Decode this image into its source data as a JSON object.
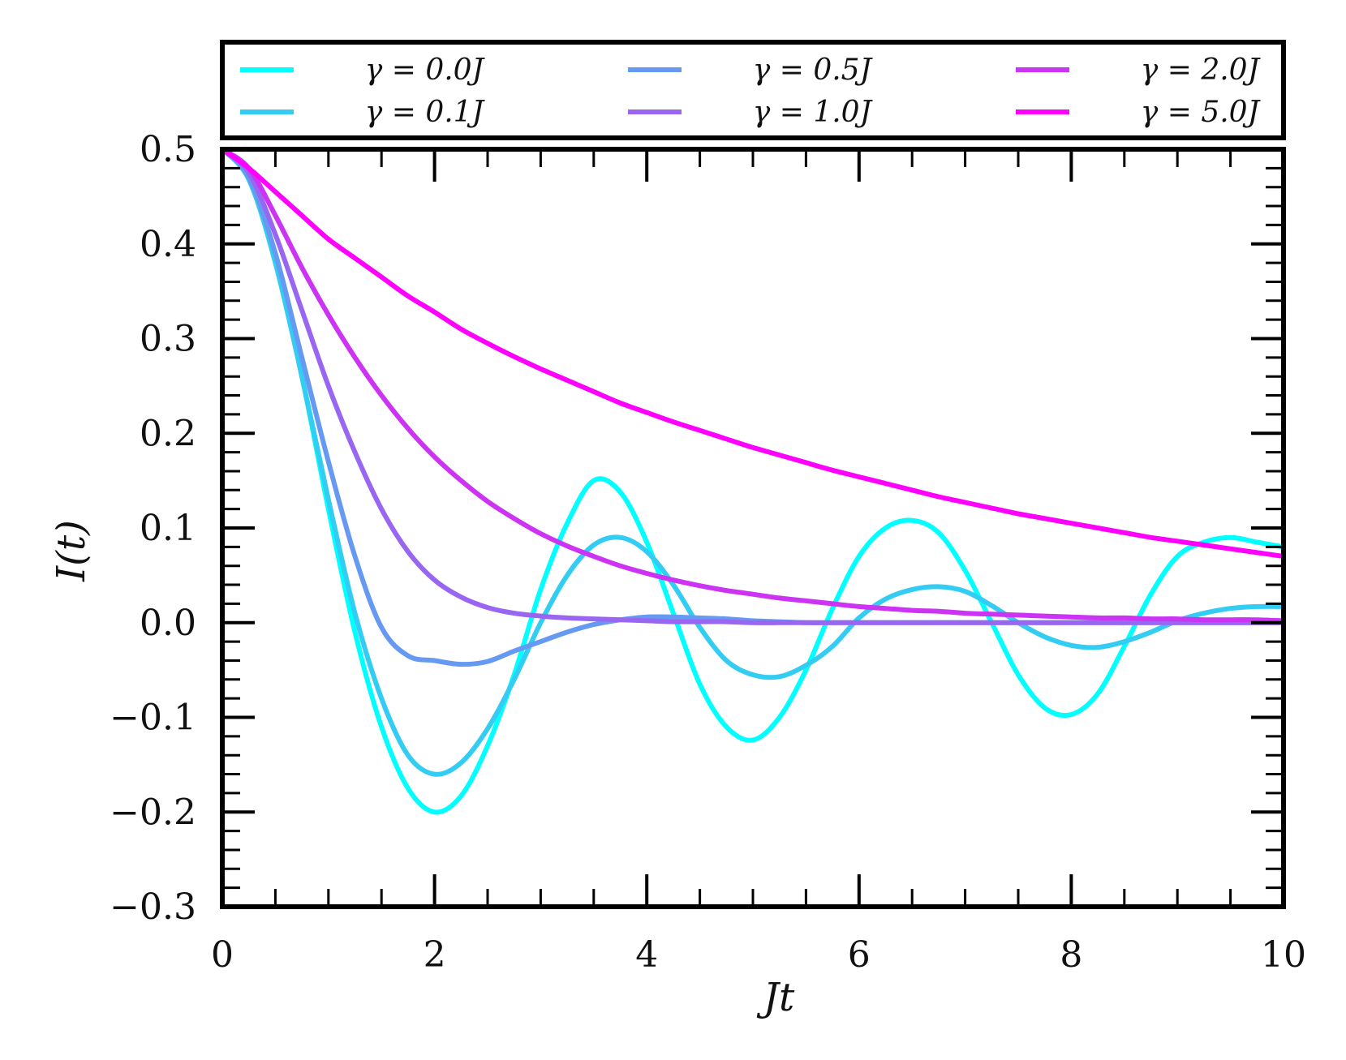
{
  "chart_data": {
    "type": "line",
    "title": "",
    "xlabel": "Jt",
    "ylabel": "I(t)",
    "xlim": [
      0,
      10
    ],
    "ylim": [
      -0.3,
      0.5
    ],
    "x_ticks": [
      0,
      2,
      4,
      6,
      8,
      10
    ],
    "x_tick_labels": [
      "0",
      "2",
      "4",
      "6",
      "8",
      "10"
    ],
    "y_ticks": [
      -0.3,
      -0.2,
      -0.1,
      0.0,
      0.1,
      0.2,
      0.3,
      0.4,
      0.5
    ],
    "y_tick_labels": [
      "−0.3",
      "−0.2",
      "−0.1",
      "0.0",
      "0.1",
      "0.2",
      "0.3",
      "0.4",
      "0.5"
    ],
    "grid": false,
    "legend_position": "top, outside plot, 3 columns",
    "x": [
      0,
      0.25,
      0.5,
      0.75,
      1.0,
      1.25,
      1.5,
      1.75,
      2.0,
      2.25,
      2.5,
      2.75,
      3.0,
      3.25,
      3.5,
      3.75,
      4.0,
      4.25,
      4.5,
      4.75,
      5.0,
      5.25,
      5.5,
      5.75,
      6.0,
      6.25,
      6.5,
      6.75,
      7.0,
      7.25,
      7.5,
      7.75,
      8.0,
      8.25,
      8.5,
      8.75,
      9.0,
      9.25,
      9.5,
      9.75,
      10.0
    ],
    "series": [
      {
        "name": "γ = 0.0J",
        "color": "#00ffff",
        "values": [
          0.5,
          0.469,
          0.383,
          0.26,
          0.12,
          -0.01,
          -0.11,
          -0.175,
          -0.2,
          -0.183,
          -0.13,
          -0.055,
          0.035,
          0.105,
          0.15,
          0.138,
          0.085,
          0.01,
          -0.065,
          -0.11,
          -0.124,
          -0.1,
          -0.05,
          0.015,
          0.07,
          0.1,
          0.108,
          0.095,
          0.055,
          0.0,
          -0.055,
          -0.09,
          -0.097,
          -0.075,
          -0.025,
          0.03,
          0.07,
          0.085,
          0.09,
          0.085,
          0.08
        ]
      },
      {
        "name": "γ = 0.1J",
        "color": "#33ccf2",
        "values": [
          0.5,
          0.468,
          0.38,
          0.26,
          0.13,
          0.01,
          -0.08,
          -0.14,
          -0.16,
          -0.148,
          -0.112,
          -0.06,
          0.0,
          0.05,
          0.082,
          0.09,
          0.075,
          0.04,
          -0.005,
          -0.04,
          -0.055,
          -0.057,
          -0.045,
          -0.025,
          0.005,
          0.025,
          0.035,
          0.038,
          0.033,
          0.018,
          0.0,
          -0.015,
          -0.024,
          -0.026,
          -0.02,
          -0.01,
          0.002,
          0.01,
          0.015,
          0.017,
          0.017
        ]
      },
      {
        "name": "γ = 0.5J",
        "color": "#6699f2",
        "values": [
          0.5,
          0.47,
          0.39,
          0.28,
          0.17,
          0.07,
          -0.005,
          -0.035,
          -0.04,
          -0.044,
          -0.041,
          -0.03,
          -0.02,
          -0.01,
          -0.002,
          0.003,
          0.006,
          0.006,
          0.005,
          0.004,
          0.002,
          0.001,
          0.0,
          0.0,
          0.0,
          0.0,
          0.0,
          0.0,
          0.0,
          0.0,
          0.0,
          0.0,
          0.0,
          0.0,
          0.0,
          0.0,
          0.0,
          0.0,
          0.0,
          0.0,
          0.0
        ]
      },
      {
        "name": "γ = 1.0J",
        "color": "#9966f2",
        "values": [
          0.5,
          0.475,
          0.41,
          0.33,
          0.25,
          0.18,
          0.12,
          0.075,
          0.045,
          0.027,
          0.016,
          0.01,
          0.007,
          0.005,
          0.004,
          0.003,
          0.002,
          0.001,
          0.001,
          0.001,
          0.0,
          0.0,
          0.0,
          0.0,
          0.0,
          0.0,
          0.0,
          0.0,
          0.0,
          0.0,
          0.0,
          0.0,
          0.0,
          0.0,
          0.0,
          0.0,
          0.0,
          0.0,
          0.0,
          0.0,
          0.0
        ]
      },
      {
        "name": "γ = 2.0J",
        "color": "#cc33f2",
        "values": [
          0.5,
          0.48,
          0.43,
          0.375,
          0.325,
          0.28,
          0.24,
          0.205,
          0.175,
          0.15,
          0.128,
          0.11,
          0.094,
          0.081,
          0.07,
          0.06,
          0.052,
          0.045,
          0.039,
          0.034,
          0.03,
          0.026,
          0.023,
          0.02,
          0.017,
          0.015,
          0.013,
          0.012,
          0.01,
          0.009,
          0.008,
          0.007,
          0.006,
          0.005,
          0.005,
          0.004,
          0.004,
          0.003,
          0.003,
          0.003,
          0.002
        ]
      },
      {
        "name": "γ = 5.0J",
        "color": "#ff00ff",
        "values": [
          0.5,
          0.48,
          0.455,
          0.43,
          0.405,
          0.385,
          0.365,
          0.345,
          0.328,
          0.31,
          0.295,
          0.281,
          0.268,
          0.256,
          0.244,
          0.232,
          0.222,
          0.212,
          0.203,
          0.194,
          0.185,
          0.177,
          0.169,
          0.161,
          0.154,
          0.147,
          0.14,
          0.133,
          0.127,
          0.121,
          0.115,
          0.11,
          0.105,
          0.1,
          0.095,
          0.09,
          0.086,
          0.082,
          0.078,
          0.074,
          0.07
        ]
      }
    ]
  }
}
